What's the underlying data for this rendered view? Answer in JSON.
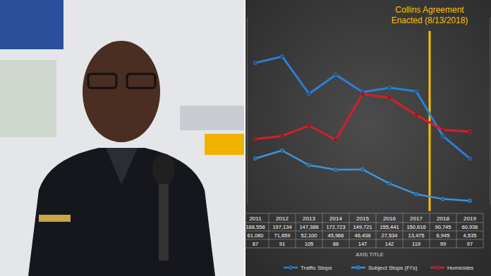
{
  "chart_data": {
    "type": "line",
    "categories": [
      "2011",
      "2012",
      "2013",
      "2014",
      "2015",
      "2016",
      "2017",
      "2018",
      "2019"
    ],
    "series": [
      {
        "name": "Traffic Stops",
        "color": "#2a80d6",
        "marker": "circle",
        "values": [
          188558,
          197134,
          147386,
          172723,
          149721,
          155441,
          150616,
          90745,
          60936
        ],
        "value_labels": [
          "188,558",
          "197,134",
          "147,386",
          "172,723",
          "149,721",
          "155,441",
          "150,616",
          "90,745",
          "60,936"
        ]
      },
      {
        "name": "Subject Stops (FI's)",
        "color": "#3a95dd",
        "marker": "circle",
        "values": [
          61080,
          71659,
          52100,
          45966,
          46438,
          27534,
          13475,
          6945,
          4535
        ],
        "value_labels": [
          "61,080",
          "71,659",
          "52,100",
          "45,966",
          "46,438",
          "27,534",
          "13,475",
          "6,945",
          "4,535"
        ]
      },
      {
        "name": "Homicides",
        "color": "#d2202a",
        "marker": "circle",
        "axis": "y2",
        "values": [
          87,
          91,
          105,
          86,
          147,
          142,
          119,
          99,
          97
        ]
      }
    ],
    "ylim": [
      0,
      250000
    ],
    "y2lim": [
      0,
      250
    ],
    "x_label": "AXIS TITLE",
    "tick_labels": false,
    "data_labels": true,
    "legend": "bottom",
    "annotations": [
      {
        "lines": [
          "Collins Agreement",
          "Enacted (8/13/2018)"
        ],
        "x": "2018",
        "color": "#ffc000"
      }
    ]
  }
}
